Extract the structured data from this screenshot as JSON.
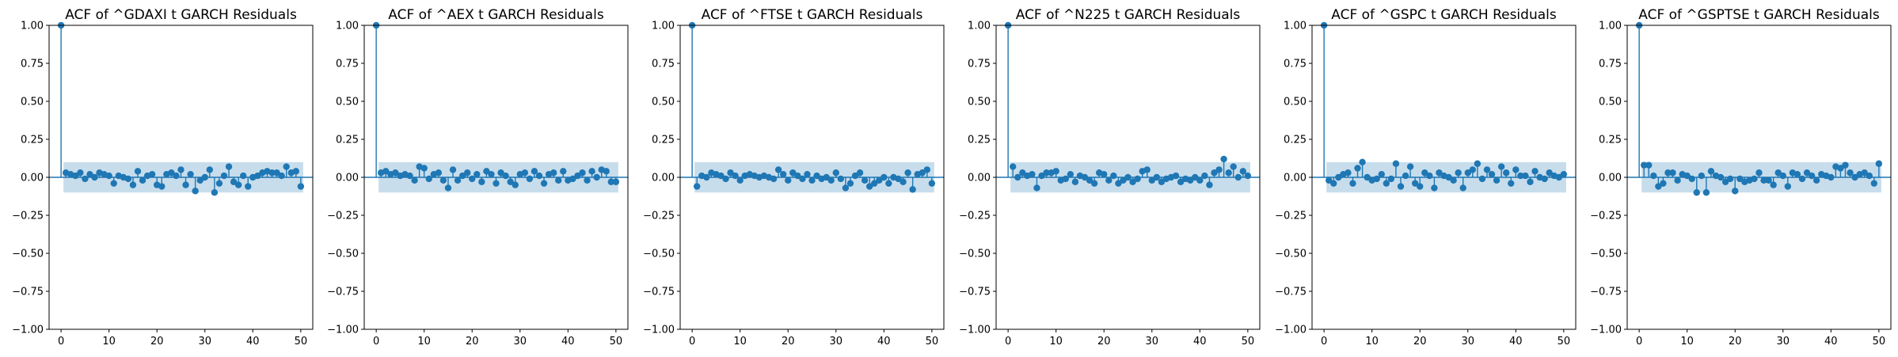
{
  "figure": {
    "stem_color": "#1f77b4",
    "band_color": "#1f77b4",
    "band_opacity": 0.25
  },
  "chart_data": [
    {
      "type": "stem",
      "title": "ACF of ^GDAXI t GARCH Residuals",
      "xlabel": "",
      "ylabel": "",
      "xlim": [
        -2.5,
        52.5
      ],
      "ylim": [
        -1.0,
        1.0
      ],
      "xticks": [
        0,
        10,
        20,
        30,
        40,
        50
      ],
      "yticks": [
        -1.0,
        -0.75,
        -0.5,
        -0.25,
        0.0,
        0.25,
        0.5,
        0.75,
        1.0
      ],
      "ytick_labels": [
        "−1.00",
        "−0.75",
        "−0.50",
        "−0.25",
        "0.00",
        "0.25",
        "0.50",
        "0.75",
        "1.00"
      ],
      "confidence_band": 0.1,
      "lags": [
        0,
        1,
        2,
        3,
        4,
        5,
        6,
        7,
        8,
        9,
        10,
        11,
        12,
        13,
        14,
        15,
        16,
        17,
        18,
        19,
        20,
        21,
        22,
        23,
        24,
        25,
        26,
        27,
        28,
        29,
        30,
        31,
        32,
        33,
        34,
        35,
        36,
        37,
        38,
        39,
        40,
        41,
        42,
        43,
        44,
        45,
        46,
        47,
        48,
        49,
        50
      ],
      "values": [
        1.0,
        0.03,
        0.02,
        0.01,
        0.03,
        -0.01,
        0.02,
        0.0,
        0.03,
        0.02,
        0.01,
        -0.04,
        0.01,
        0.0,
        -0.01,
        -0.05,
        0.04,
        -0.02,
        0.01,
        0.02,
        -0.05,
        -0.06,
        0.02,
        0.03,
        0.01,
        0.05,
        -0.05,
        0.02,
        -0.09,
        -0.02,
        0.0,
        0.05,
        -0.1,
        -0.04,
        0.01,
        0.07,
        -0.03,
        -0.05,
        0.01,
        -0.06,
        0.0,
        0.01,
        0.03,
        0.04,
        0.03,
        0.03,
        0.01,
        0.07,
        0.03,
        0.04,
        -0.06
      ]
    },
    {
      "type": "stem",
      "title": "ACF of ^AEX t GARCH Residuals",
      "xlabel": "",
      "ylabel": "",
      "xlim": [
        -2.5,
        52.5
      ],
      "ylim": [
        -1.0,
        1.0
      ],
      "xticks": [
        0,
        10,
        20,
        30,
        40,
        50
      ],
      "yticks": [
        -1.0,
        -0.75,
        -0.5,
        -0.25,
        0.0,
        0.25,
        0.5,
        0.75,
        1.0
      ],
      "ytick_labels": [
        "−1.00",
        "−0.75",
        "−0.50",
        "−0.25",
        "0.00",
        "0.25",
        "0.50",
        "0.75",
        "1.00"
      ],
      "confidence_band": 0.1,
      "lags": [
        0,
        1,
        2,
        3,
        4,
        5,
        6,
        7,
        8,
        9,
        10,
        11,
        12,
        13,
        14,
        15,
        16,
        17,
        18,
        19,
        20,
        21,
        22,
        23,
        24,
        25,
        26,
        27,
        28,
        29,
        30,
        31,
        32,
        33,
        34,
        35,
        36,
        37,
        38,
        39,
        40,
        41,
        42,
        43,
        44,
        45,
        46,
        47,
        48,
        49,
        50
      ],
      "values": [
        1.0,
        0.03,
        0.04,
        0.02,
        0.03,
        0.01,
        0.02,
        0.01,
        -0.02,
        0.07,
        0.06,
        -0.01,
        0.02,
        0.03,
        -0.02,
        -0.07,
        0.05,
        -0.02,
        0.01,
        0.03,
        -0.01,
        0.02,
        -0.03,
        0.04,
        0.02,
        -0.04,
        0.03,
        0.01,
        -0.03,
        -0.05,
        0.02,
        0.03,
        -0.01,
        0.04,
        0.01,
        -0.04,
        0.02,
        0.03,
        -0.02,
        0.04,
        -0.02,
        -0.01,
        0.01,
        0.03,
        -0.02,
        0.04,
        0.0,
        0.05,
        0.04,
        -0.03,
        -0.03
      ]
    },
    {
      "type": "stem",
      "title": "ACF of ^FTSE t GARCH Residuals",
      "xlabel": "",
      "ylabel": "",
      "xlim": [
        -2.5,
        52.5
      ],
      "ylim": [
        -1.0,
        1.0
      ],
      "xticks": [
        0,
        10,
        20,
        30,
        40,
        50
      ],
      "yticks": [
        -1.0,
        -0.75,
        -0.5,
        -0.25,
        0.0,
        0.25,
        0.5,
        0.75,
        1.0
      ],
      "ytick_labels": [
        "−1.00",
        "−0.75",
        "−0.50",
        "−0.25",
        "0.00",
        "0.25",
        "0.50",
        "0.75",
        "1.00"
      ],
      "confidence_band": 0.1,
      "lags": [
        0,
        1,
        2,
        3,
        4,
        5,
        6,
        7,
        8,
        9,
        10,
        11,
        12,
        13,
        14,
        15,
        16,
        17,
        18,
        19,
        20,
        21,
        22,
        23,
        24,
        25,
        26,
        27,
        28,
        29,
        30,
        31,
        32,
        33,
        34,
        35,
        36,
        37,
        38,
        39,
        40,
        41,
        42,
        43,
        44,
        45,
        46,
        47,
        48,
        49,
        50
      ],
      "values": [
        1.0,
        -0.06,
        0.01,
        0.0,
        0.03,
        0.02,
        0.01,
        -0.01,
        0.03,
        0.01,
        -0.02,
        0.01,
        0.02,
        0.01,
        0.0,
        0.01,
        0.0,
        -0.01,
        0.05,
        0.02,
        -0.02,
        0.03,
        0.01,
        -0.01,
        0.02,
        -0.02,
        0.01,
        -0.01,
        0.0,
        -0.02,
        0.03,
        -0.01,
        -0.07,
        -0.04,
        0.01,
        0.03,
        -0.02,
        -0.06,
        -0.04,
        -0.02,
        0.0,
        -0.04,
        0.0,
        -0.01,
        -0.03,
        0.03,
        -0.08,
        0.02,
        0.03,
        0.05,
        -0.04
      ]
    },
    {
      "type": "stem",
      "title": "ACF of ^N225 t GARCH Residuals",
      "xlabel": "",
      "ylabel": "",
      "xlim": [
        -2.5,
        52.5
      ],
      "ylim": [
        -1.0,
        1.0
      ],
      "xticks": [
        0,
        10,
        20,
        30,
        40,
        50
      ],
      "yticks": [
        -1.0,
        -0.75,
        -0.5,
        -0.25,
        0.0,
        0.25,
        0.5,
        0.75,
        1.0
      ],
      "ytick_labels": [
        "−1.00",
        "−0.75",
        "−0.50",
        "−0.25",
        "0.00",
        "0.25",
        "0.50",
        "0.75",
        "1.00"
      ],
      "confidence_band": 0.1,
      "lags": [
        0,
        1,
        2,
        3,
        4,
        5,
        6,
        7,
        8,
        9,
        10,
        11,
        12,
        13,
        14,
        15,
        16,
        17,
        18,
        19,
        20,
        21,
        22,
        23,
        24,
        25,
        26,
        27,
        28,
        29,
        30,
        31,
        32,
        33,
        34,
        35,
        36,
        37,
        38,
        39,
        40,
        41,
        42,
        43,
        44,
        45,
        46,
        47,
        48,
        49,
        50
      ],
      "values": [
        1.0,
        0.07,
        0.0,
        0.03,
        0.01,
        0.02,
        -0.07,
        0.01,
        0.03,
        0.03,
        0.04,
        -0.02,
        -0.01,
        0.02,
        -0.03,
        0.01,
        0.0,
        -0.02,
        -0.04,
        0.03,
        0.02,
        -0.02,
        0.01,
        -0.04,
        -0.02,
        0.0,
        -0.03,
        -0.01,
        0.04,
        0.05,
        -0.02,
        0.0,
        -0.03,
        -0.01,
        0.0,
        0.01,
        -0.03,
        -0.01,
        -0.02,
        0.0,
        -0.02,
        0.01,
        -0.05,
        0.03,
        0.05,
        0.12,
        0.03,
        0.07,
        0.0,
        0.04,
        0.01
      ]
    },
    {
      "type": "stem",
      "title": "ACF of ^GSPC t GARCH Residuals",
      "xlabel": "",
      "ylabel": "",
      "xlim": [
        -2.5,
        52.5
      ],
      "ylim": [
        -1.0,
        1.0
      ],
      "xticks": [
        0,
        10,
        20,
        30,
        40,
        50
      ],
      "yticks": [
        -1.0,
        -0.75,
        -0.5,
        -0.25,
        0.0,
        0.25,
        0.5,
        0.75,
        1.0
      ],
      "ytick_labels": [
        "−1.00",
        "−0.75",
        "−0.50",
        "−0.25",
        "0.00",
        "0.25",
        "0.50",
        "0.75",
        "1.00"
      ],
      "confidence_band": 0.1,
      "lags": [
        0,
        1,
        2,
        3,
        4,
        5,
        6,
        7,
        8,
        9,
        10,
        11,
        12,
        13,
        14,
        15,
        16,
        17,
        18,
        19,
        20,
        21,
        22,
        23,
        24,
        25,
        26,
        27,
        28,
        29,
        30,
        31,
        32,
        33,
        34,
        35,
        36,
        37,
        38,
        39,
        40,
        41,
        42,
        43,
        44,
        45,
        46,
        47,
        48,
        49,
        50
      ],
      "values": [
        1.0,
        -0.02,
        -0.04,
        0.0,
        0.02,
        0.03,
        -0.04,
        0.06,
        0.1,
        0.0,
        -0.02,
        -0.01,
        0.02,
        -0.04,
        -0.01,
        0.09,
        -0.06,
        0.01,
        0.07,
        -0.04,
        -0.06,
        0.03,
        0.01,
        -0.07,
        0.03,
        0.01,
        0.0,
        -0.02,
        0.03,
        -0.07,
        0.03,
        0.05,
        0.09,
        -0.01,
        0.05,
        0.02,
        -0.02,
        0.07,
        0.03,
        -0.04,
        0.05,
        0.01,
        0.01,
        -0.03,
        0.04,
        0.0,
        -0.01,
        0.03,
        0.01,
        0.0,
        0.02
      ]
    },
    {
      "type": "stem",
      "title": "ACF of ^GSPTSE t GARCH Residuals",
      "xlabel": "",
      "ylabel": "",
      "xlim": [
        -2.5,
        52.5
      ],
      "ylim": [
        -1.0,
        1.0
      ],
      "xticks": [
        0,
        10,
        20,
        30,
        40,
        50
      ],
      "yticks": [
        -1.0,
        -0.75,
        -0.5,
        -0.25,
        0.0,
        0.25,
        0.5,
        0.75,
        1.0
      ],
      "ytick_labels": [
        "−1.00",
        "−0.75",
        "−0.50",
        "−0.25",
        "0.00",
        "0.25",
        "0.50",
        "0.75",
        "1.00"
      ],
      "confidence_band": 0.1,
      "lags": [
        0,
        1,
        2,
        3,
        4,
        5,
        6,
        7,
        8,
        9,
        10,
        11,
        12,
        13,
        14,
        15,
        16,
        17,
        18,
        19,
        20,
        21,
        22,
        23,
        24,
        25,
        26,
        27,
        28,
        29,
        30,
        31,
        32,
        33,
        34,
        35,
        36,
        37,
        38,
        39,
        40,
        41,
        42,
        43,
        44,
        45,
        46,
        47,
        48,
        49,
        50
      ],
      "values": [
        1.0,
        0.08,
        0.08,
        0.01,
        -0.06,
        -0.04,
        0.03,
        0.03,
        -0.02,
        0.02,
        0.01,
        -0.01,
        -0.1,
        0.01,
        -0.1,
        0.04,
        0.01,
        0.0,
        -0.03,
        -0.01,
        -0.09,
        -0.01,
        -0.03,
        -0.02,
        -0.01,
        0.03,
        -0.02,
        -0.02,
        -0.05,
        0.03,
        0.01,
        -0.06,
        0.03,
        0.02,
        -0.01,
        0.03,
        0.01,
        -0.02,
        0.02,
        0.01,
        0.0,
        0.07,
        0.06,
        0.08,
        0.03,
        0.0,
        0.02,
        0.03,
        0.01,
        -0.04,
        0.09
      ]
    }
  ]
}
